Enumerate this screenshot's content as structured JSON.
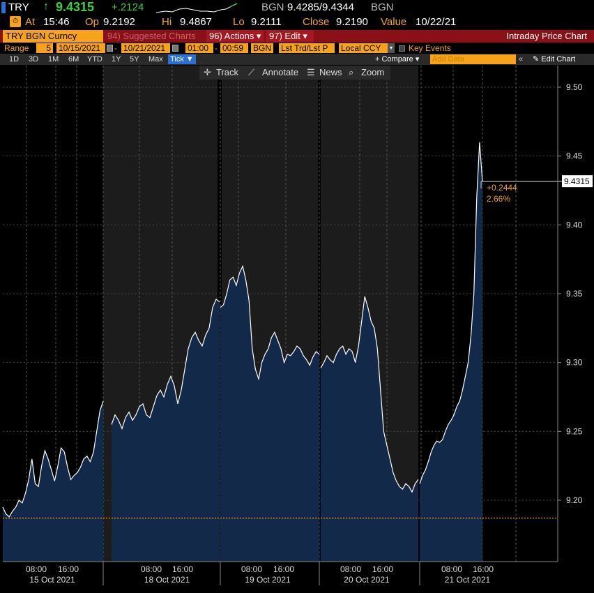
{
  "header": {
    "ticker": "TRY",
    "arrow": "↑",
    "last": "9.4315",
    "change": "+.2124",
    "bid_source": "BGN",
    "bid_ask": "9.4285/9.4344",
    "ask_source": "BGN",
    "at_label": "At",
    "time": "15:46",
    "open_label": "Op",
    "open": "9.2192",
    "high_label": "Hi",
    "high": "9.4867",
    "low_label": "Lo",
    "low": "9.2111",
    "close_label": "Close",
    "close": "9.2190",
    "value_label": "Value",
    "value_date": "10/22/21"
  },
  "menu": {
    "security": "TRY BGN Curncy",
    "suggested": "94) Suggested Charts",
    "actions": "96) Actions ▾",
    "edit": "97) Edit ▾",
    "title": "Intraday Price Chart"
  },
  "range": {
    "label": "Range",
    "days": "5",
    "start": "10/15/2021",
    "end": "10/21/2021",
    "time_start": "01:00",
    "time_end": "00:59",
    "source": "BGN",
    "field": "Lst Trd/Lst P",
    "currency": "Local CCY",
    "key_events": "Key Events"
  },
  "periods": [
    "1D",
    "3D",
    "1M",
    "6M",
    "YTD",
    "1Y",
    "5Y",
    "Max",
    "Tick ▼"
  ],
  "active_period": "Tick ▼",
  "compare": "+ Compare ▾",
  "add_data_placeholder": "Add Data",
  "edit_chart": "✎ Edit Chart",
  "toolbar": {
    "track": "Track",
    "annotate": "Annotate",
    "news": "News",
    "zoom": "Zoom"
  },
  "colors": {
    "accent": "#f7a21b",
    "area": "#13294a",
    "line": "#ffffff",
    "up": "#3ecf3e",
    "menu_red": "#8b0f17"
  },
  "chart_data": {
    "type": "area",
    "ylim": [
      9.155,
      9.515
    ],
    "yticks": [
      "9.50",
      "9.45",
      "9.40",
      "9.35",
      "9.30",
      "9.25",
      "9.20"
    ],
    "last_value_label": "9.4315",
    "change_label": "+0.2444",
    "change_pct_label": "2.66%",
    "reference_line": 9.187,
    "x_day_labels": [
      "15 Oct 2021",
      "18 Oct 2021",
      "19 Oct 2021",
      "20 Oct 2021",
      "21 Oct 2021"
    ],
    "x_hour_labels": [
      "08:00",
      "16:00"
    ],
    "days": [
      {
        "date": "15 Oct 2021",
        "values": [
          9.195,
          9.19,
          9.188,
          9.192,
          9.195,
          9.2,
          9.198,
          9.205,
          9.215,
          9.23,
          9.212,
          9.21,
          9.225,
          9.236,
          9.23,
          9.222,
          9.214,
          9.225,
          9.238,
          9.235,
          9.224,
          9.215,
          9.218,
          9.22,
          9.224,
          9.23,
          9.232,
          9.228,
          9.235,
          9.25,
          9.265,
          9.272
        ]
      },
      {
        "date": "18 Oct 2021",
        "values": [
          9.255,
          9.262,
          9.258,
          9.252,
          9.26,
          9.264,
          9.258,
          9.262,
          9.268,
          9.27,
          9.262,
          9.26,
          9.268,
          9.276,
          9.28,
          9.275,
          9.284,
          9.29,
          9.283,
          9.27,
          9.28,
          9.295,
          9.31,
          9.318,
          9.322,
          9.316,
          9.312,
          9.32,
          9.325,
          9.34,
          9.346,
          9.344
        ]
      },
      {
        "date": "19 Oct 2021",
        "values": [
          9.34,
          9.342,
          9.35,
          9.36,
          9.362,
          9.356,
          9.365,
          9.37,
          9.36,
          9.345,
          9.31,
          9.295,
          9.288,
          9.3,
          9.306,
          9.31,
          9.318,
          9.322,
          9.316,
          9.31,
          9.3,
          9.306,
          9.305,
          9.308,
          9.312,
          9.31,
          9.305,
          9.302,
          9.298,
          9.304,
          9.308,
          9.306
        ]
      },
      {
        "date": "20 Oct 2021",
        "values": [
          9.296,
          9.3,
          9.305,
          9.302,
          9.3,
          9.306,
          9.31,
          9.312,
          9.306,
          9.31,
          9.308,
          9.3,
          9.312,
          9.33,
          9.348,
          9.34,
          9.33,
          9.325,
          9.31,
          9.28,
          9.25,
          9.24,
          9.23,
          9.22,
          9.214,
          9.21,
          9.208,
          9.212,
          9.21,
          9.206,
          9.212,
          9.215
        ]
      },
      {
        "date": "21 Oct 2021",
        "values": [
          9.212,
          9.218,
          9.222,
          9.228,
          9.235,
          9.24,
          9.243,
          9.242,
          9.244,
          9.25,
          9.255,
          9.258,
          9.262,
          9.268,
          9.272,
          9.28,
          9.29,
          9.3,
          9.32,
          9.35,
          9.42,
          9.46,
          9.4315
        ]
      }
    ]
  }
}
